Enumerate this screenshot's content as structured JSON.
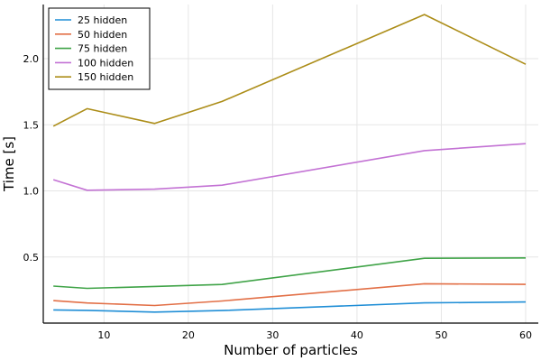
{
  "chart_data": {
    "type": "line",
    "title": "",
    "xlabel": "Number of particles",
    "ylabel": "Time [s]",
    "xlim": [
      2.8,
      61.5
    ],
    "ylim": [
      0.0,
      2.41
    ],
    "x_ticks": [
      10,
      20,
      30,
      40,
      50,
      60
    ],
    "y_ticks": [
      0.5,
      1.0,
      1.5,
      2.0
    ],
    "x_tick_labels": [
      "10",
      "20",
      "30",
      "40",
      "50",
      "60"
    ],
    "y_tick_labels": [
      "0.5",
      "1.0",
      "1.5",
      "2.0"
    ],
    "grid": true,
    "legend_position": "top-left",
    "x": [
      4,
      8,
      16,
      24,
      48,
      60
    ],
    "series": [
      {
        "name": "25 hidden",
        "color": "#1f8ed6",
        "values": [
          0.1,
          0.096,
          0.083,
          0.095,
          0.153,
          0.16
        ]
      },
      {
        "name": "50 hidden",
        "color": "#e26f46",
        "values": [
          0.17,
          0.152,
          0.133,
          0.167,
          0.298,
          0.293
        ]
      },
      {
        "name": "75 hidden",
        "color": "#3fa347",
        "values": [
          0.28,
          0.263,
          0.277,
          0.292,
          0.49,
          0.493
        ]
      },
      {
        "name": "100 hidden",
        "color": "#c372d4",
        "values": [
          1.085,
          1.005,
          1.013,
          1.043,
          1.305,
          1.357
        ]
      },
      {
        "name": "150 hidden",
        "color": "#ac8d18",
        "values": [
          1.49,
          1.622,
          1.51,
          1.677,
          2.334,
          1.958
        ]
      }
    ]
  }
}
